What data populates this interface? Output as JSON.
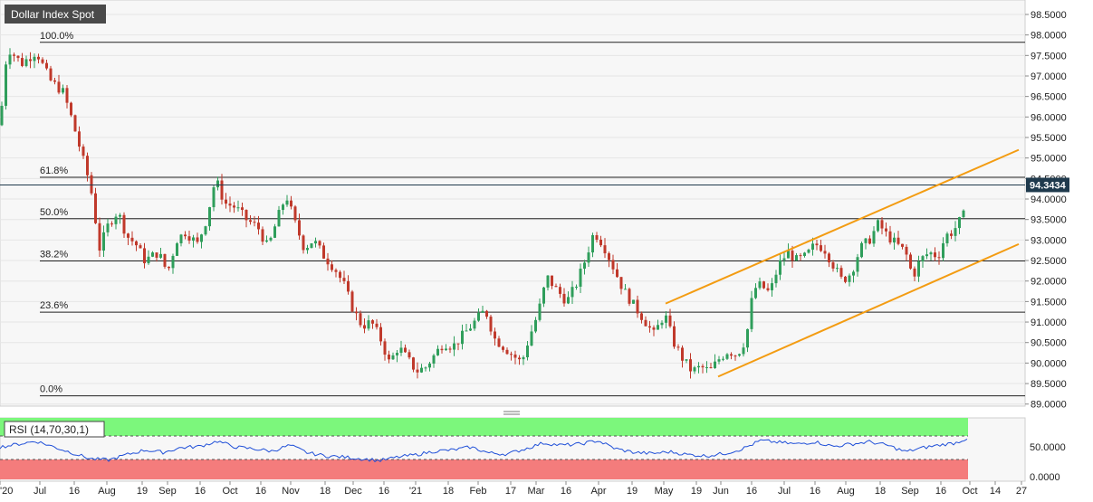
{
  "chart_data": [
    {
      "type": "candlestick",
      "title": "Dollar Index Spot",
      "last_price": "94.3434",
      "y_ticks": [
        "98.5000",
        "98.0000",
        "97.5000",
        "97.0000",
        "96.5000",
        "96.0000",
        "95.5000",
        "95.0000",
        "94.5000",
        "94.0000",
        "93.5000",
        "93.0000",
        "92.5000",
        "92.0000",
        "91.5000",
        "91.0000",
        "90.5000",
        "90.0000",
        "89.5000",
        "89.0000"
      ],
      "ylim": [
        88.95,
        98.72
      ],
      "x_ticks": [
        "'20",
        "Jul",
        "16",
        "Aug",
        "19",
        "Sep",
        "16",
        "Oct",
        "16",
        "Nov",
        "18",
        "Dec",
        "16",
        "'21",
        "18",
        "Feb",
        "17",
        "Mar",
        "16",
        "Apr",
        "19",
        "May",
        "19",
        "Jun",
        "16",
        "Jul",
        "16",
        "Aug",
        "18",
        "Sep",
        "16",
        "Oct",
        "14",
        "27"
      ],
      "fibonacci": [
        {
          "label": "100.0%",
          "value": 97.82
        },
        {
          "label": "61.8%",
          "value": 94.53
        },
        {
          "label": "50.0%",
          "value": 93.52
        },
        {
          "label": "38.2%",
          "value": 92.49
        },
        {
          "label": "23.6%",
          "value": 91.24
        },
        {
          "label": "0.0%",
          "value": 89.2
        }
      ],
      "price_path": [
        [
          0,
          95.8
        ],
        [
          8,
          97.7
        ],
        [
          24,
          97.3
        ],
        [
          40,
          97.6
        ],
        [
          55,
          96.9
        ],
        [
          70,
          96.6
        ],
        [
          80,
          95.9
        ],
        [
          90,
          95.1
        ],
        [
          100,
          94.3
        ],
        [
          110,
          92.8
        ],
        [
          120,
          93.4
        ],
        [
          130,
          93.7
        ],
        [
          140,
          93.1
        ],
        [
          150,
          92.9
        ],
        [
          160,
          92.5
        ],
        [
          175,
          92.7
        ],
        [
          185,
          92.2
        ],
        [
          195,
          93.0
        ],
        [
          205,
          93.2
        ],
        [
          218,
          92.9
        ],
        [
          228,
          93.5
        ],
        [
          238,
          94.5
        ],
        [
          248,
          93.9
        ],
        [
          260,
          93.8
        ],
        [
          272,
          93.5
        ],
        [
          285,
          93.3
        ],
        [
          296,
          92.8
        ],
        [
          306,
          93.5
        ],
        [
          316,
          94.1
        ],
        [
          326,
          93.4
        ],
        [
          336,
          92.8
        ],
        [
          346,
          93.0
        ],
        [
          358,
          92.6
        ],
        [
          370,
          92.3
        ],
        [
          380,
          91.9
        ],
        [
          390,
          91.3
        ],
        [
          400,
          90.9
        ],
        [
          410,
          91.0
        ],
        [
          420,
          90.6
        ],
        [
          430,
          90.0
        ],
        [
          440,
          90.4
        ],
        [
          450,
          90.1
        ],
        [
          460,
          89.8
        ],
        [
          470,
          89.9
        ],
        [
          480,
          90.2
        ],
        [
          490,
          90.5
        ],
        [
          500,
          90.4
        ],
        [
          512,
          90.7
        ],
        [
          524,
          91.0
        ],
        [
          536,
          91.3
        ],
        [
          546,
          90.6
        ],
        [
          556,
          90.4
        ],
        [
          566,
          90.2
        ],
        [
          576,
          90.0
        ],
        [
          584,
          90.6
        ],
        [
          594,
          91.2
        ],
        [
          604,
          92.1
        ],
        [
          614,
          91.8
        ],
        [
          626,
          91.5
        ],
        [
          636,
          91.9
        ],
        [
          646,
          92.5
        ],
        [
          656,
          93.2
        ],
        [
          666,
          92.9
        ],
        [
          676,
          92.4
        ],
        [
          688,
          91.8
        ],
        [
          700,
          91.4
        ],
        [
          710,
          91.1
        ],
        [
          722,
          90.7
        ],
        [
          734,
          91.2
        ],
        [
          744,
          90.5
        ],
        [
          754,
          90.1
        ],
        [
          764,
          89.8
        ],
        [
          774,
          89.9
        ],
        [
          784,
          89.8
        ],
        [
          794,
          90.1
        ],
        [
          804,
          90.3
        ],
        [
          814,
          90.2
        ],
        [
          824,
          90.6
        ],
        [
          832,
          91.8
        ],
        [
          840,
          91.9
        ],
        [
          850,
          91.7
        ],
        [
          860,
          92.4
        ],
        [
          870,
          92.7
        ],
        [
          880,
          92.5
        ],
        [
          890,
          92.6
        ],
        [
          900,
          92.9
        ],
        [
          910,
          92.8
        ],
        [
          920,
          92.4
        ],
        [
          930,
          92.0
        ],
        [
          940,
          92.2
        ],
        [
          950,
          92.8
        ],
        [
          960,
          93.0
        ],
        [
          970,
          93.4
        ],
        [
          980,
          93.1
        ],
        [
          990,
          92.9
        ],
        [
          1000,
          92.7
        ],
        [
          1008,
          92.1
        ],
        [
          1016,
          92.5
        ],
        [
          1026,
          92.7
        ],
        [
          1036,
          92.6
        ],
        [
          1044,
          93.1
        ],
        [
          1052,
          93.2
        ],
        [
          1058,
          93.4
        ],
        [
          1064,
          93.6
        ],
        [
          1068,
          94.34
        ]
      ],
      "channel": {
        "upper": [
          [
            735,
            91.45
          ],
          [
            1125,
            95.2
          ]
        ],
        "lower": [
          [
            793,
            89.67
          ],
          [
            1125,
            92.9
          ]
        ]
      },
      "colors": {
        "up": "#2f9e5b",
        "down": "#c0392b",
        "channel": "#f39c12",
        "last_price_bg": "#1f3a4d"
      }
    },
    {
      "type": "line",
      "title": "RSI (14,70,30,1)",
      "y_ticks": [
        "50.0000",
        "0.0000"
      ],
      "overbought": 70,
      "oversold": 30,
      "path": [
        [
          0,
          55
        ],
        [
          20,
          60
        ],
        [
          40,
          65
        ],
        [
          60,
          55
        ],
        [
          80,
          45
        ],
        [
          100,
          35
        ],
        [
          120,
          33
        ],
        [
          140,
          42
        ],
        [
          160,
          50
        ],
        [
          180,
          46
        ],
        [
          200,
          54
        ],
        [
          220,
          56
        ],
        [
          240,
          65
        ],
        [
          260,
          55
        ],
        [
          280,
          52
        ],
        [
          300,
          48
        ],
        [
          320,
          58
        ],
        [
          340,
          45
        ],
        [
          360,
          40
        ],
        [
          380,
          38
        ],
        [
          400,
          35
        ],
        [
          420,
          32
        ],
        [
          440,
          38
        ],
        [
          460,
          42
        ],
        [
          480,
          48
        ],
        [
          500,
          50
        ],
        [
          520,
          55
        ],
        [
          540,
          45
        ],
        [
          560,
          43
        ],
        [
          580,
          52
        ],
        [
          600,
          62
        ],
        [
          620,
          58
        ],
        [
          640,
          60
        ],
        [
          660,
          66
        ],
        [
          680,
          52
        ],
        [
          700,
          46
        ],
        [
          720,
          44
        ],
        [
          740,
          47
        ],
        [
          760,
          42
        ],
        [
          780,
          40
        ],
        [
          800,
          44
        ],
        [
          820,
          52
        ],
        [
          840,
          66
        ],
        [
          860,
          63
        ],
        [
          880,
          60
        ],
        [
          900,
          64
        ],
        [
          920,
          56
        ],
        [
          940,
          60
        ],
        [
          960,
          64
        ],
        [
          980,
          58
        ],
        [
          1000,
          47
        ],
        [
          1020,
          54
        ],
        [
          1040,
          59
        ],
        [
          1055,
          62
        ],
        [
          1068,
          70
        ]
      ],
      "colors": {
        "line": "#1f4fd8",
        "overbought_fill": "#7cf77c",
        "oversold_fill": "#f47c7c"
      }
    }
  ]
}
